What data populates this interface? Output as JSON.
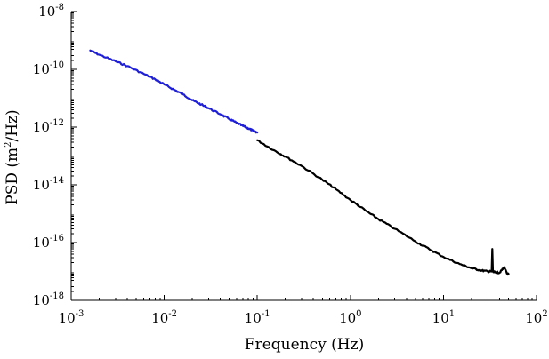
{
  "chart_data": {
    "type": "line",
    "title": "",
    "xlabel": "Frequency (Hz)",
    "ylabel_parts": {
      "pre": "PSD (m",
      "sup": "2",
      "post": "/Hz)"
    },
    "x_scale": "log",
    "y_scale": "log",
    "xlim": [
      0.001,
      100
    ],
    "ylim": [
      1e-18,
      1e-08
    ],
    "grid": false,
    "legend": "none",
    "x_ticks": [
      {
        "value": 0.001,
        "base": "10",
        "exp": "-3"
      },
      {
        "value": 0.01,
        "base": "10",
        "exp": "-2"
      },
      {
        "value": 0.1,
        "base": "10",
        "exp": "-1"
      },
      {
        "value": 1,
        "base": "10",
        "exp": "0"
      },
      {
        "value": 10,
        "base": "10",
        "exp": "1"
      },
      {
        "value": 100,
        "base": "10",
        "exp": "2"
      }
    ],
    "y_ticks": [
      {
        "value": 1e-18,
        "base": "10",
        "exp": "-18"
      },
      {
        "value": 1e-16,
        "base": "10",
        "exp": "-16"
      },
      {
        "value": 1e-14,
        "base": "10",
        "exp": "-14"
      },
      {
        "value": 1e-12,
        "base": "10",
        "exp": "-12"
      },
      {
        "value": 1e-10,
        "base": "10",
        "exp": "-10"
      },
      {
        "value": 1e-08,
        "base": "10",
        "exp": "-8"
      }
    ],
    "series": [
      {
        "color": "#1f1fd6",
        "x": [
          0.0016,
          0.002,
          0.003,
          0.004,
          0.006,
          0.008,
          0.01,
          0.013,
          0.016,
          0.02,
          0.025,
          0.03,
          0.04,
          0.05,
          0.06,
          0.07,
          0.08,
          0.09,
          0.1
        ],
        "y": [
          4.5e-10,
          3.2e-10,
          1.9e-10,
          1.3e-10,
          7e-11,
          4.5e-11,
          3e-11,
          1.9e-11,
          1.35e-11,
          8.5e-12,
          6e-12,
          4.5e-12,
          2.8e-12,
          1.9e-12,
          1.4e-12,
          1.1e-12,
          9e-13,
          7.5e-13,
          6.5e-13
        ]
      },
      {
        "color": "#000000",
        "x": [
          0.1,
          0.15,
          0.2,
          0.3,
          0.5,
          0.7,
          1,
          1.5,
          2,
          3,
          5,
          7,
          10,
          15,
          20,
          25,
          30,
          33,
          33.5,
          34,
          34.5,
          36,
          40,
          45,
          48,
          50
        ],
        "y": [
          3.5e-13,
          1.6e-13,
          9.5e-14,
          4.5e-14,
          1.5e-14,
          7e-15,
          3e-15,
          1.2e-15,
          6.5e-16,
          3e-16,
          1.1e-16,
          6e-17,
          3.2e-17,
          1.8e-17,
          1.3e-17,
          1.1e-17,
          1e-17,
          1e-17,
          6e-17,
          1e-17,
          9.5e-18,
          9.5e-18,
          9e-18,
          1.4e-17,
          8.5e-18,
          8e-18
        ]
      }
    ]
  }
}
